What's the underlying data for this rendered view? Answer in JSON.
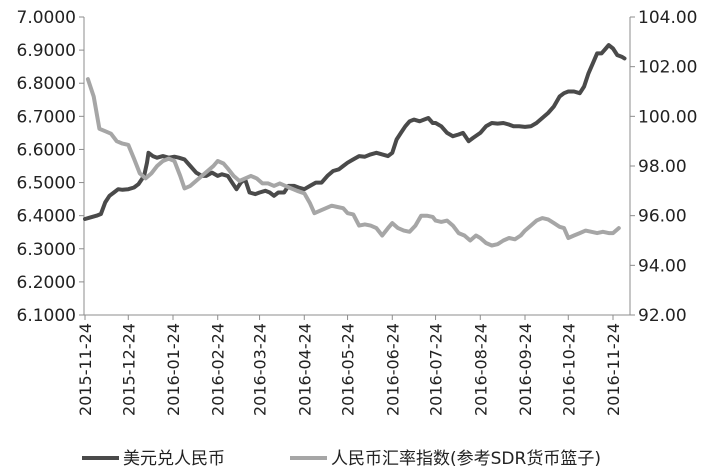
{
  "chart_data": {
    "type": "line",
    "title": "",
    "xlabel": "",
    "ylabel": "",
    "x_ticks": [
      "2015-11-24",
      "2015-12-24",
      "2016-01-24",
      "2016-02-24",
      "2016-03-24",
      "2016-04-24",
      "2016-05-24",
      "2016-06-24",
      "2016-07-24",
      "2016-08-24",
      "2016-09-24",
      "2016-10-24",
      "2016-11-24"
    ],
    "y_left": {
      "min": 6.1,
      "max": 7.0,
      "ticks": [
        "6.1000",
        "6.2000",
        "6.3000",
        "6.4000",
        "6.5000",
        "6.6000",
        "6.7000",
        "6.8000",
        "6.9000",
        "7.0000"
      ]
    },
    "y_right": {
      "min": 92.0,
      "max": 104.0,
      "ticks": [
        "92.00",
        "94.00",
        "96.00",
        "98.00",
        "100.00",
        "102.00",
        "104.00"
      ]
    },
    "grid": false,
    "legend_position": "bottom",
    "series": [
      {
        "name": "美元兑人民币",
        "axis": "left",
        "color": "#4a4a4a",
        "points": [
          [
            "2015-11-24",
            6.39
          ],
          [
            "2015-11-28",
            6.395
          ],
          [
            "2015-12-02",
            6.4
          ],
          [
            "2015-12-05",
            6.405
          ],
          [
            "2015-12-08",
            6.44
          ],
          [
            "2015-12-11",
            6.46
          ],
          [
            "2015-12-14",
            6.47
          ],
          [
            "2015-12-17",
            6.48
          ],
          [
            "2015-12-20",
            6.478
          ],
          [
            "2015-12-24",
            6.48
          ],
          [
            "2015-12-28",
            6.485
          ],
          [
            "2015-12-31",
            6.495
          ],
          [
            "2016-01-04",
            6.52
          ],
          [
            "2016-01-06",
            6.56
          ],
          [
            "2016-01-07",
            6.59
          ],
          [
            "2016-01-10",
            6.58
          ],
          [
            "2016-01-13",
            6.575
          ],
          [
            "2016-01-17",
            6.58
          ],
          [
            "2016-01-21",
            6.575
          ],
          [
            "2016-01-25",
            6.578
          ],
          [
            "2016-01-28",
            6.575
          ],
          [
            "2016-02-01",
            6.57
          ],
          [
            "2016-02-05",
            6.55
          ],
          [
            "2016-02-09",
            6.53
          ],
          [
            "2016-02-13",
            6.52
          ],
          [
            "2016-02-16",
            6.52
          ],
          [
            "2016-02-20",
            6.53
          ],
          [
            "2016-02-24",
            6.52
          ],
          [
            "2016-02-27",
            6.525
          ],
          [
            "2016-03-02",
            6.52
          ],
          [
            "2016-03-05",
            6.5
          ],
          [
            "2016-03-08",
            6.48
          ],
          [
            "2016-03-11",
            6.5
          ],
          [
            "2016-03-14",
            6.51
          ],
          [
            "2016-03-17",
            6.47
          ],
          [
            "2016-03-21",
            6.465
          ],
          [
            "2016-03-24",
            6.47
          ],
          [
            "2016-03-28",
            6.475
          ],
          [
            "2016-03-31",
            6.47
          ],
          [
            "2016-04-03",
            6.46
          ],
          [
            "2016-04-06",
            6.47
          ],
          [
            "2016-04-10",
            6.47
          ],
          [
            "2016-04-13",
            6.49
          ],
          [
            "2016-04-17",
            6.49
          ],
          [
            "2016-04-20",
            6.485
          ],
          [
            "2016-04-24",
            6.48
          ],
          [
            "2016-04-28",
            6.49
          ],
          [
            "2016-05-02",
            6.5
          ],
          [
            "2016-05-06",
            6.5
          ],
          [
            "2016-05-10",
            6.52
          ],
          [
            "2016-05-14",
            6.535
          ],
          [
            "2016-05-18",
            6.54
          ],
          [
            "2016-05-21",
            6.55
          ],
          [
            "2016-05-24",
            6.56
          ],
          [
            "2016-05-28",
            6.57
          ],
          [
            "2016-06-01",
            6.58
          ],
          [
            "2016-06-05",
            6.578
          ],
          [
            "2016-06-09",
            6.585
          ],
          [
            "2016-06-13",
            6.59
          ],
          [
            "2016-06-17",
            6.585
          ],
          [
            "2016-06-21",
            6.58
          ],
          [
            "2016-06-24",
            6.59
          ],
          [
            "2016-06-27",
            6.63
          ],
          [
            "2016-06-30",
            6.65
          ],
          [
            "2016-07-03",
            6.67
          ],
          [
            "2016-07-06",
            6.685
          ],
          [
            "2016-07-09",
            6.69
          ],
          [
            "2016-07-13",
            6.685
          ],
          [
            "2016-07-16",
            6.69
          ],
          [
            "2016-07-19",
            6.695
          ],
          [
            "2016-07-22",
            6.68
          ],
          [
            "2016-07-24",
            6.68
          ],
          [
            "2016-07-28",
            6.67
          ],
          [
            "2016-08-01",
            6.65
          ],
          [
            "2016-08-05",
            6.64
          ],
          [
            "2016-08-09",
            6.645
          ],
          [
            "2016-08-12",
            6.65
          ],
          [
            "2016-08-16",
            6.625
          ],
          [
            "2016-08-19",
            6.635
          ],
          [
            "2016-08-24",
            6.65
          ],
          [
            "2016-08-28",
            6.67
          ],
          [
            "2016-09-01",
            6.68
          ],
          [
            "2016-09-05",
            6.678
          ],
          [
            "2016-09-09",
            6.68
          ],
          [
            "2016-09-13",
            6.675
          ],
          [
            "2016-09-16",
            6.67
          ],
          [
            "2016-09-20",
            6.67
          ],
          [
            "2016-09-24",
            6.668
          ],
          [
            "2016-09-28",
            6.67
          ],
          [
            "2016-10-02",
            6.68
          ],
          [
            "2016-10-06",
            6.695
          ],
          [
            "2016-10-10",
            6.71
          ],
          [
            "2016-10-14",
            6.73
          ],
          [
            "2016-10-18",
            6.76
          ],
          [
            "2016-10-21",
            6.77
          ],
          [
            "2016-10-24",
            6.775
          ],
          [
            "2016-10-28",
            6.775
          ],
          [
            "2016-11-01",
            6.77
          ],
          [
            "2016-11-04",
            6.79
          ],
          [
            "2016-11-07",
            6.83
          ],
          [
            "2016-11-10",
            6.86
          ],
          [
            "2016-11-13",
            6.89
          ],
          [
            "2016-11-16",
            6.89
          ],
          [
            "2016-11-19",
            6.905
          ],
          [
            "2016-11-21",
            6.915
          ],
          [
            "2016-11-24",
            6.905
          ],
          [
            "2016-11-27",
            6.885
          ],
          [
            "2016-11-30",
            6.88
          ],
          [
            "2016-12-02",
            6.875
          ]
        ]
      },
      {
        "name": "人民币汇率指数(参考SDR货币篮子)",
        "axis": "right",
        "color": "#a6a6a6",
        "points": [
          [
            "2015-11-26",
            101.5
          ],
          [
            "2015-11-30",
            100.8
          ],
          [
            "2015-12-04",
            99.5
          ],
          [
            "2015-12-08",
            99.4
          ],
          [
            "2015-12-12",
            99.3
          ],
          [
            "2015-12-16",
            99.0
          ],
          [
            "2015-12-20",
            98.9
          ],
          [
            "2015-12-24",
            98.85
          ],
          [
            "2015-12-28",
            98.3
          ],
          [
            "2016-01-01",
            97.7
          ],
          [
            "2016-01-05",
            97.5
          ],
          [
            "2016-01-09",
            97.7
          ],
          [
            "2016-01-13",
            98.0
          ],
          [
            "2016-01-17",
            98.2
          ],
          [
            "2016-01-21",
            98.3
          ],
          [
            "2016-01-25",
            98.2
          ],
          [
            "2016-01-29",
            97.6
          ],
          [
            "2016-02-01",
            97.1
          ],
          [
            "2016-02-05",
            97.2
          ],
          [
            "2016-02-09",
            97.4
          ],
          [
            "2016-02-13",
            97.6
          ],
          [
            "2016-02-17",
            97.8
          ],
          [
            "2016-02-21",
            98.0
          ],
          [
            "2016-02-24",
            98.2
          ],
          [
            "2016-02-28",
            98.1
          ],
          [
            "2016-03-02",
            97.9
          ],
          [
            "2016-03-06",
            97.6
          ],
          [
            "2016-03-10",
            97.4
          ],
          [
            "2016-03-14",
            97.5
          ],
          [
            "2016-03-18",
            97.6
          ],
          [
            "2016-03-22",
            97.5
          ],
          [
            "2016-03-26",
            97.3
          ],
          [
            "2016-03-30",
            97.3
          ],
          [
            "2016-04-03",
            97.2
          ],
          [
            "2016-04-07",
            97.3
          ],
          [
            "2016-04-11",
            97.2
          ],
          [
            "2016-04-15",
            97.1
          ],
          [
            "2016-04-19",
            97.0
          ],
          [
            "2016-04-24",
            96.9
          ],
          [
            "2016-04-28",
            96.5
          ],
          [
            "2016-05-01",
            96.1
          ],
          [
            "2016-05-05",
            96.2
          ],
          [
            "2016-05-09",
            96.3
          ],
          [
            "2016-05-13",
            96.4
          ],
          [
            "2016-05-17",
            96.35
          ],
          [
            "2016-05-21",
            96.3
          ],
          [
            "2016-05-24",
            96.1
          ],
          [
            "2016-05-28",
            96.05
          ],
          [
            "2016-06-01",
            95.6
          ],
          [
            "2016-06-05",
            95.65
          ],
          [
            "2016-06-09",
            95.6
          ],
          [
            "2016-06-13",
            95.5
          ],
          [
            "2016-06-17",
            95.2
          ],
          [
            "2016-06-21",
            95.5
          ],
          [
            "2016-06-24",
            95.7
          ],
          [
            "2016-06-28",
            95.5
          ],
          [
            "2016-07-02",
            95.4
          ],
          [
            "2016-07-06",
            95.35
          ],
          [
            "2016-07-10",
            95.6
          ],
          [
            "2016-07-14",
            96.0
          ],
          [
            "2016-07-18",
            96.0
          ],
          [
            "2016-07-22",
            95.95
          ],
          [
            "2016-07-24",
            95.8
          ],
          [
            "2016-07-28",
            95.75
          ],
          [
            "2016-08-01",
            95.8
          ],
          [
            "2016-08-05",
            95.6
          ],
          [
            "2016-08-09",
            95.3
          ],
          [
            "2016-08-13",
            95.2
          ],
          [
            "2016-08-17",
            95.0
          ],
          [
            "2016-08-21",
            95.2
          ],
          [
            "2016-08-24",
            95.1
          ],
          [
            "2016-08-28",
            94.9
          ],
          [
            "2016-09-01",
            94.8
          ],
          [
            "2016-09-05",
            94.85
          ],
          [
            "2016-09-09",
            95.0
          ],
          [
            "2016-09-13",
            95.1
          ],
          [
            "2016-09-17",
            95.05
          ],
          [
            "2016-09-21",
            95.2
          ],
          [
            "2016-09-24",
            95.4
          ],
          [
            "2016-09-28",
            95.6
          ],
          [
            "2016-10-02",
            95.8
          ],
          [
            "2016-10-06",
            95.9
          ],
          [
            "2016-10-10",
            95.85
          ],
          [
            "2016-10-14",
            95.7
          ],
          [
            "2016-10-18",
            95.55
          ],
          [
            "2016-10-21",
            95.5
          ],
          [
            "2016-10-24",
            95.1
          ],
          [
            "2016-10-28",
            95.2
          ],
          [
            "2016-11-01",
            95.3
          ],
          [
            "2016-11-05",
            95.4
          ],
          [
            "2016-11-09",
            95.35
          ],
          [
            "2016-11-13",
            95.3
          ],
          [
            "2016-11-17",
            95.35
          ],
          [
            "2016-11-21",
            95.3
          ],
          [
            "2016-11-24",
            95.3
          ],
          [
            "2016-11-28",
            95.5
          ]
        ]
      }
    ]
  }
}
